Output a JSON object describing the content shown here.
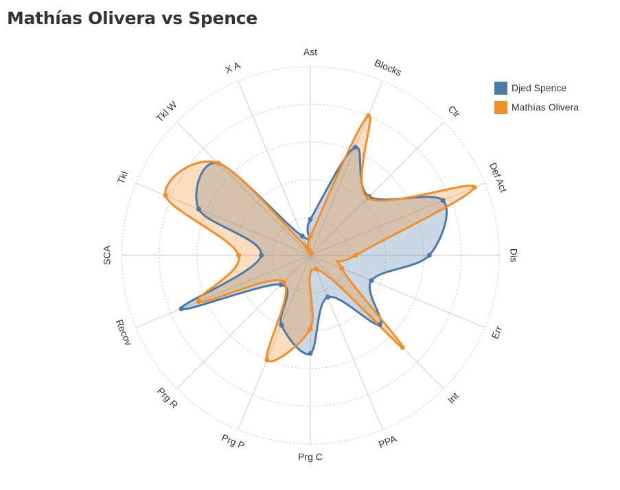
{
  "title": "Mathías Olivera vs Spence",
  "legend": [
    {
      "label": "Djed Spence",
      "color": "#4e79a7"
    },
    {
      "label": "Mathías Olivera",
      "color": "#f28e2b"
    }
  ],
  "chart_data": {
    "type": "radar",
    "axes": [
      "Ast",
      "Blocks",
      "Clr",
      "Def Act",
      "Dis",
      "Err",
      "Int",
      "PPA",
      "Prg C",
      "Prg P",
      "Prg R",
      "Recov",
      "SCA",
      "Tkl",
      "Tkl W",
      "X A"
    ],
    "range": [
      0,
      100
    ],
    "rings": 5,
    "series": [
      {
        "name": "Djed Spence",
        "color": "#4e79a7",
        "values": [
          19,
          62,
          44,
          76,
          63,
          35,
          52,
          24,
          52,
          40,
          22,
          74,
          26,
          64,
          69,
          11
        ]
      },
      {
        "name": "Mathías Olivera",
        "color": "#f28e2b",
        "values": [
          10,
          80,
          43,
          94,
          24,
          18,
          69,
          8,
          39,
          60,
          20,
          64,
          38,
          83,
          69,
          5
        ]
      }
    ],
    "grid": true
  }
}
